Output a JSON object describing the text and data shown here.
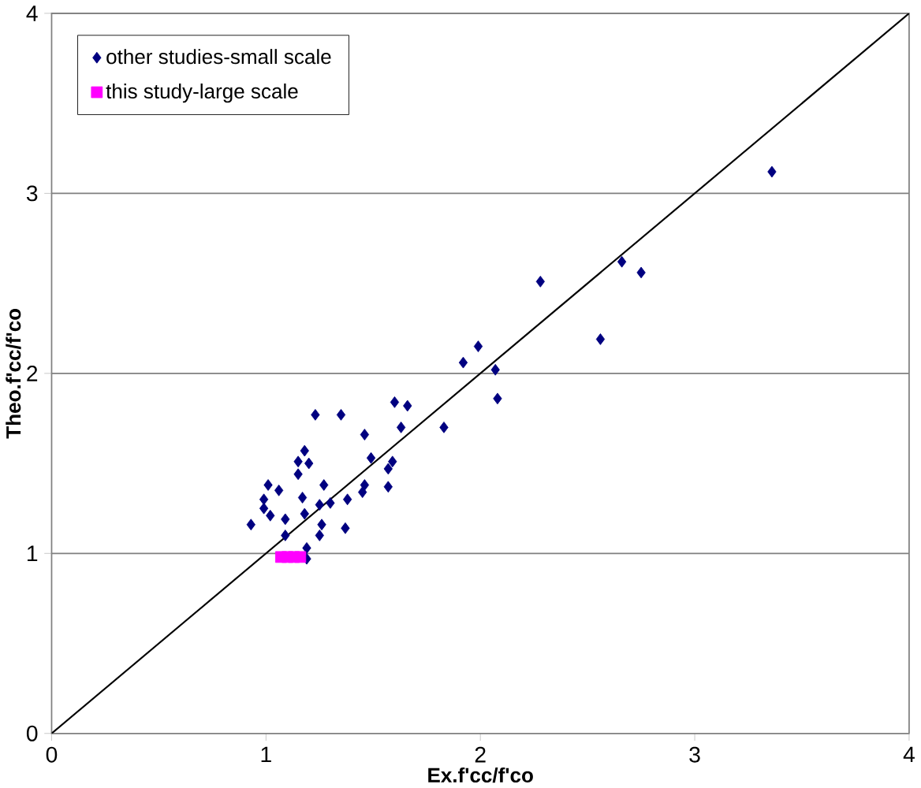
{
  "chart_data": {
    "type": "scatter",
    "xlabel": "Ex.f'cc/f'co",
    "ylabel": "Theo.f'cc/f'co",
    "xlim": [
      0,
      4
    ],
    "ylim": [
      0,
      4
    ],
    "xticks": [
      0,
      1,
      2,
      3,
      4
    ],
    "yticks": [
      0,
      1,
      2,
      3,
      4
    ],
    "grid": "y",
    "legend": "top left",
    "series": [
      {
        "name": "other studies-small scale",
        "color": "#000080",
        "marker": "diamond",
        "x": [
          3.36,
          2.66,
          2.75,
          2.28,
          2.56,
          1.99,
          1.92,
          2.07,
          2.08,
          1.23,
          1.35,
          1.6,
          1.66,
          1.46,
          1.63,
          1.83,
          1.18,
          1.15,
          1.2,
          1.15,
          1.49,
          1.59,
          1.57,
          1.01,
          1.06,
          0.99,
          0.99,
          1.02,
          1.27,
          1.46,
          1.45,
          1.57,
          1.17,
          1.25,
          1.3,
          1.38,
          1.09,
          1.18,
          1.26,
          0.93,
          1.37,
          1.25,
          1.09,
          1.19,
          1.19
        ],
        "values": [
          3.12,
          2.62,
          2.56,
          2.51,
          2.19,
          2.15,
          2.06,
          2.02,
          1.86,
          1.77,
          1.77,
          1.84,
          1.82,
          1.66,
          1.7,
          1.7,
          1.57,
          1.51,
          1.5,
          1.44,
          1.53,
          1.51,
          1.47,
          1.38,
          1.35,
          1.3,
          1.25,
          1.21,
          1.38,
          1.38,
          1.34,
          1.37,
          1.31,
          1.27,
          1.28,
          1.3,
          1.19,
          1.22,
          1.16,
          1.16,
          1.14,
          1.1,
          1.1,
          1.03,
          0.97
        ]
      },
      {
        "name": "this study-large scale",
        "color": "#ff00ff",
        "marker": "square",
        "x": [
          1.07,
          1.1,
          1.13,
          1.16
        ],
        "values": [
          0.98,
          0.98,
          0.98,
          0.98
        ]
      },
      {
        "type": "line",
        "color": "#000000",
        "marker": "none",
        "x": [
          0,
          4
        ],
        "values": [
          0,
          4
        ]
      }
    ]
  }
}
